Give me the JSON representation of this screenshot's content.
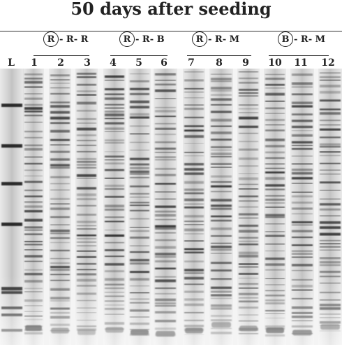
{
  "title": "50 days after seeding",
  "groups": [
    {
      "circled": "R",
      "rest": "- R- R"
    },
    {
      "circled": "R",
      "rest": "- R- B"
    },
    {
      "circled": "R",
      "rest": "- R- M"
    },
    {
      "circled": "B",
      "rest": "- R- M"
    }
  ],
  "lanes": [
    "L",
    "1",
    "2",
    "3",
    "4",
    "5",
    "6",
    "7",
    "8",
    "9",
    "10",
    "11",
    "12"
  ]
}
